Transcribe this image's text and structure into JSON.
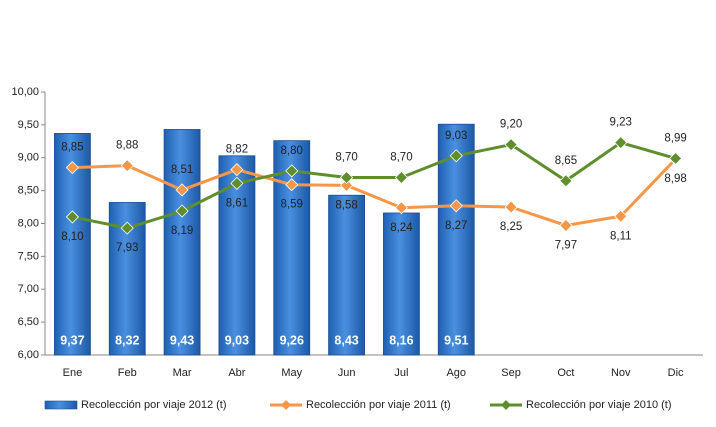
{
  "chart_data": {
    "type": "bar",
    "categories": [
      "Ene",
      "Feb",
      "Mar",
      "Abr",
      "May",
      "Jun",
      "Jul",
      "Ago",
      "Sep",
      "Oct",
      "Nov",
      "Dic"
    ],
    "series": [
      {
        "name": "Recolección por viaje 2012 (t)",
        "type": "bar",
        "color": "#2e75c9",
        "values": [
          9.37,
          8.32,
          9.43,
          9.03,
          9.26,
          8.43,
          8.16,
          9.51,
          null,
          null,
          null,
          null
        ],
        "value_labels": [
          "9,37",
          "8,32",
          "9,43",
          "9,03",
          "9,26",
          "8,43",
          "8,16",
          "9,51",
          null,
          null,
          null,
          null
        ]
      },
      {
        "name": "Recolección por viaje 2011 (t)",
        "type": "line",
        "color": "#f79646",
        "values": [
          8.85,
          8.88,
          8.51,
          8.82,
          8.59,
          8.58,
          8.24,
          8.27,
          8.25,
          7.97,
          8.11,
          8.98
        ],
        "value_labels": [
          "8,85",
          "8,88",
          "8,51",
          "8,82",
          "8,59",
          "8,58",
          "8,24",
          "8,27",
          "8,25",
          "7,97",
          "8,11",
          "8,98"
        ]
      },
      {
        "name": "Recolección por viaje 2010 (t)",
        "type": "line",
        "color": "#5f8f2d",
        "values": [
          8.1,
          7.93,
          8.19,
          8.61,
          8.8,
          8.7,
          8.7,
          9.03,
          9.2,
          8.65,
          9.23,
          8.99
        ],
        "value_labels": [
          "8,10",
          "7,93",
          "8,19",
          "8,61",
          "8,80",
          "8,70",
          "8,70",
          "9,03",
          "9,20",
          "8,65",
          "9,23",
          "8,99"
        ]
      }
    ],
    "ylim": [
      6,
      10
    ],
    "yticks": [
      {
        "value": 6,
        "label": "6,00"
      },
      {
        "value": 6.5,
        "label": "6,50"
      },
      {
        "value": 7,
        "label": "7,00"
      },
      {
        "value": 7.5,
        "label": "7,50"
      },
      {
        "value": 8,
        "label": "8,00"
      },
      {
        "value": 8.5,
        "label": "8,50"
      },
      {
        "value": 9,
        "label": "9,00"
      },
      {
        "value": 9.5,
        "label": "9,50"
      },
      {
        "value": 10,
        "label": "10,00"
      }
    ],
    "legend": "bottom"
  }
}
